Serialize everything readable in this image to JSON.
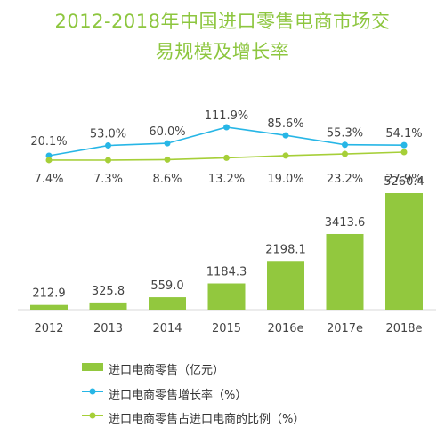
{
  "title_line1": "2012-2018年中国进口零售电商市场交",
  "title_line2": "易规模及增长率",
  "colors": {
    "bar": "#92c83e",
    "growth": "#27b6e6",
    "share": "#a6cf38",
    "title": "#8dc63f"
  },
  "chart_data": {
    "type": "bar",
    "categories": [
      "2012",
      "2013",
      "2014",
      "2015",
      "2016e",
      "2017e",
      "2018e"
    ],
    "series": [
      {
        "name": "进口电商零售（亿元）",
        "type": "bar",
        "values": [
          212.9,
          325.8,
          559.0,
          1184.3,
          2198.1,
          3413.6,
          5260.4
        ],
        "labels": [
          "212.9",
          "325.8",
          "559.0",
          "1184.3",
          "2198.1",
          "3413.6",
          "5260.4"
        ]
      },
      {
        "name": "进口电商零售增长率（%）",
        "type": "line",
        "values": [
          20.1,
          53.0,
          60.0,
          111.9,
          85.6,
          55.3,
          54.1
        ],
        "labels": [
          "20.1%",
          "53.0%",
          "60.0%",
          "111.9%",
          "85.6%",
          "55.3%",
          "54.1%"
        ]
      },
      {
        "name": "进口电商零售占进口电商的比例（%）",
        "type": "line",
        "values": [
          7.4,
          7.3,
          8.6,
          13.2,
          19.0,
          23.2,
          27.9
        ],
        "labels": [
          "7.4%",
          "7.3%",
          "8.6%",
          "13.2%",
          "19.0%",
          "23.2%",
          "27.9%"
        ]
      }
    ],
    "ylim": [
      0,
      5260.4
    ],
    "legend_position": "bottom-left"
  },
  "legend": [
    {
      "label": "进口电商零售（亿元）",
      "icon": "bar-swatch"
    },
    {
      "label": "进口电商零售增长率（%）",
      "icon": "line-marker-blue"
    },
    {
      "label": "进口电商零售占进口电商的比例（%）",
      "icon": "line-marker-green"
    }
  ]
}
